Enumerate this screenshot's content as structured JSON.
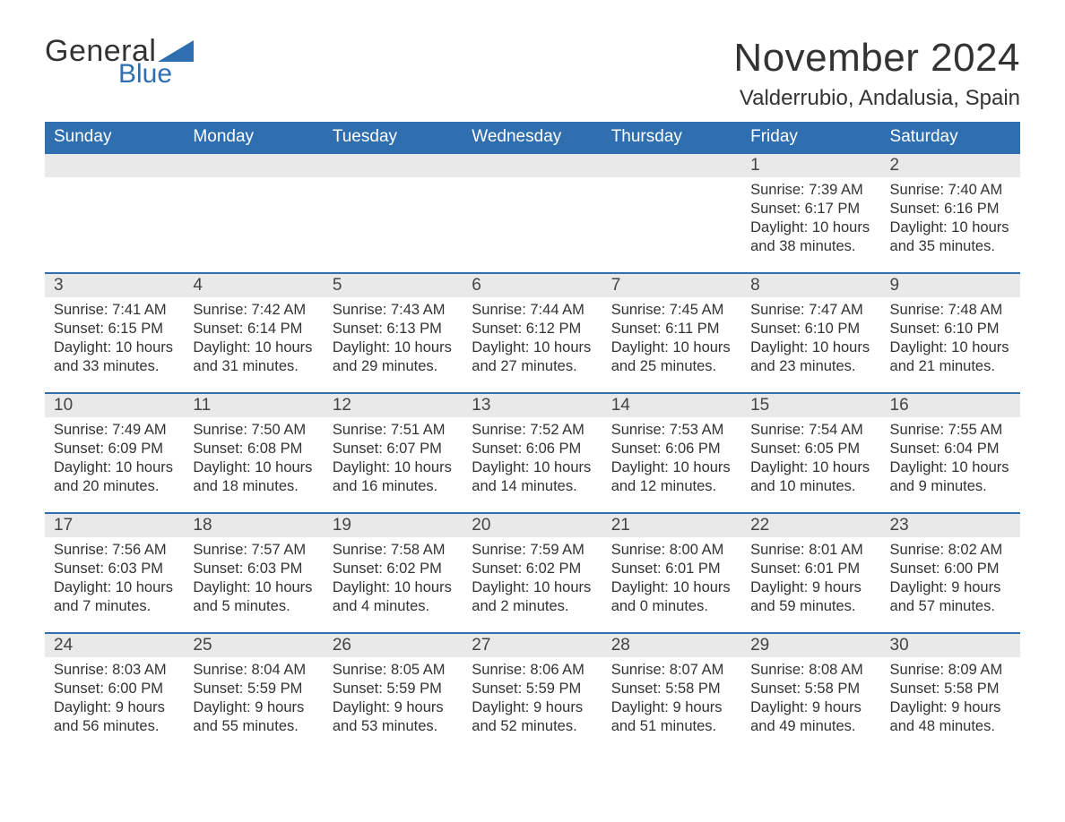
{
  "brand": {
    "general": "General",
    "blue": "Blue",
    "brand_color": "#2f6fb0"
  },
  "title": "November 2024",
  "location": "Valderrubio, Andalusia, Spain",
  "colors": {
    "header_bg": "#2f6fb0",
    "header_text": "#ffffff",
    "daynum_bg": "#e9e9e9",
    "row_border": "#2f6fb0",
    "body_text": "#333333",
    "page_bg": "#ffffff"
  },
  "typography": {
    "title_fontsize": 44,
    "location_fontsize": 24,
    "dayheader_fontsize": 19,
    "daynum_fontsize": 19,
    "body_fontsize": 16.5
  },
  "day_headers": [
    "Sunday",
    "Monday",
    "Tuesday",
    "Wednesday",
    "Thursday",
    "Friday",
    "Saturday"
  ],
  "weeks": [
    [
      null,
      null,
      null,
      null,
      null,
      {
        "n": "1",
        "sunrise": "Sunrise: 7:39 AM",
        "sunset": "Sunset: 6:17 PM",
        "daylight": "Daylight: 10 hours and 38 minutes."
      },
      {
        "n": "2",
        "sunrise": "Sunrise: 7:40 AM",
        "sunset": "Sunset: 6:16 PM",
        "daylight": "Daylight: 10 hours and 35 minutes."
      }
    ],
    [
      {
        "n": "3",
        "sunrise": "Sunrise: 7:41 AM",
        "sunset": "Sunset: 6:15 PM",
        "daylight": "Daylight: 10 hours and 33 minutes."
      },
      {
        "n": "4",
        "sunrise": "Sunrise: 7:42 AM",
        "sunset": "Sunset: 6:14 PM",
        "daylight": "Daylight: 10 hours and 31 minutes."
      },
      {
        "n": "5",
        "sunrise": "Sunrise: 7:43 AM",
        "sunset": "Sunset: 6:13 PM",
        "daylight": "Daylight: 10 hours and 29 minutes."
      },
      {
        "n": "6",
        "sunrise": "Sunrise: 7:44 AM",
        "sunset": "Sunset: 6:12 PM",
        "daylight": "Daylight: 10 hours and 27 minutes."
      },
      {
        "n": "7",
        "sunrise": "Sunrise: 7:45 AM",
        "sunset": "Sunset: 6:11 PM",
        "daylight": "Daylight: 10 hours and 25 minutes."
      },
      {
        "n": "8",
        "sunrise": "Sunrise: 7:47 AM",
        "sunset": "Sunset: 6:10 PM",
        "daylight": "Daylight: 10 hours and 23 minutes."
      },
      {
        "n": "9",
        "sunrise": "Sunrise: 7:48 AM",
        "sunset": "Sunset: 6:10 PM",
        "daylight": "Daylight: 10 hours and 21 minutes."
      }
    ],
    [
      {
        "n": "10",
        "sunrise": "Sunrise: 7:49 AM",
        "sunset": "Sunset: 6:09 PM",
        "daylight": "Daylight: 10 hours and 20 minutes."
      },
      {
        "n": "11",
        "sunrise": "Sunrise: 7:50 AM",
        "sunset": "Sunset: 6:08 PM",
        "daylight": "Daylight: 10 hours and 18 minutes."
      },
      {
        "n": "12",
        "sunrise": "Sunrise: 7:51 AM",
        "sunset": "Sunset: 6:07 PM",
        "daylight": "Daylight: 10 hours and 16 minutes."
      },
      {
        "n": "13",
        "sunrise": "Sunrise: 7:52 AM",
        "sunset": "Sunset: 6:06 PM",
        "daylight": "Daylight: 10 hours and 14 minutes."
      },
      {
        "n": "14",
        "sunrise": "Sunrise: 7:53 AM",
        "sunset": "Sunset: 6:06 PM",
        "daylight": "Daylight: 10 hours and 12 minutes."
      },
      {
        "n": "15",
        "sunrise": "Sunrise: 7:54 AM",
        "sunset": "Sunset: 6:05 PM",
        "daylight": "Daylight: 10 hours and 10 minutes."
      },
      {
        "n": "16",
        "sunrise": "Sunrise: 7:55 AM",
        "sunset": "Sunset: 6:04 PM",
        "daylight": "Daylight: 10 hours and 9 minutes."
      }
    ],
    [
      {
        "n": "17",
        "sunrise": "Sunrise: 7:56 AM",
        "sunset": "Sunset: 6:03 PM",
        "daylight": "Daylight: 10 hours and 7 minutes."
      },
      {
        "n": "18",
        "sunrise": "Sunrise: 7:57 AM",
        "sunset": "Sunset: 6:03 PM",
        "daylight": "Daylight: 10 hours and 5 minutes."
      },
      {
        "n": "19",
        "sunrise": "Sunrise: 7:58 AM",
        "sunset": "Sunset: 6:02 PM",
        "daylight": "Daylight: 10 hours and 4 minutes."
      },
      {
        "n": "20",
        "sunrise": "Sunrise: 7:59 AM",
        "sunset": "Sunset: 6:02 PM",
        "daylight": "Daylight: 10 hours and 2 minutes."
      },
      {
        "n": "21",
        "sunrise": "Sunrise: 8:00 AM",
        "sunset": "Sunset: 6:01 PM",
        "daylight": "Daylight: 10 hours and 0 minutes."
      },
      {
        "n": "22",
        "sunrise": "Sunrise: 8:01 AM",
        "sunset": "Sunset: 6:01 PM",
        "daylight": "Daylight: 9 hours and 59 minutes."
      },
      {
        "n": "23",
        "sunrise": "Sunrise: 8:02 AM",
        "sunset": "Sunset: 6:00 PM",
        "daylight": "Daylight: 9 hours and 57 minutes."
      }
    ],
    [
      {
        "n": "24",
        "sunrise": "Sunrise: 8:03 AM",
        "sunset": "Sunset: 6:00 PM",
        "daylight": "Daylight: 9 hours and 56 minutes."
      },
      {
        "n": "25",
        "sunrise": "Sunrise: 8:04 AM",
        "sunset": "Sunset: 5:59 PM",
        "daylight": "Daylight: 9 hours and 55 minutes."
      },
      {
        "n": "26",
        "sunrise": "Sunrise: 8:05 AM",
        "sunset": "Sunset: 5:59 PM",
        "daylight": "Daylight: 9 hours and 53 minutes."
      },
      {
        "n": "27",
        "sunrise": "Sunrise: 8:06 AM",
        "sunset": "Sunset: 5:59 PM",
        "daylight": "Daylight: 9 hours and 52 minutes."
      },
      {
        "n": "28",
        "sunrise": "Sunrise: 8:07 AM",
        "sunset": "Sunset: 5:58 PM",
        "daylight": "Daylight: 9 hours and 51 minutes."
      },
      {
        "n": "29",
        "sunrise": "Sunrise: 8:08 AM",
        "sunset": "Sunset: 5:58 PM",
        "daylight": "Daylight: 9 hours and 49 minutes."
      },
      {
        "n": "30",
        "sunrise": "Sunrise: 8:09 AM",
        "sunset": "Sunset: 5:58 PM",
        "daylight": "Daylight: 9 hours and 48 minutes."
      }
    ]
  ]
}
